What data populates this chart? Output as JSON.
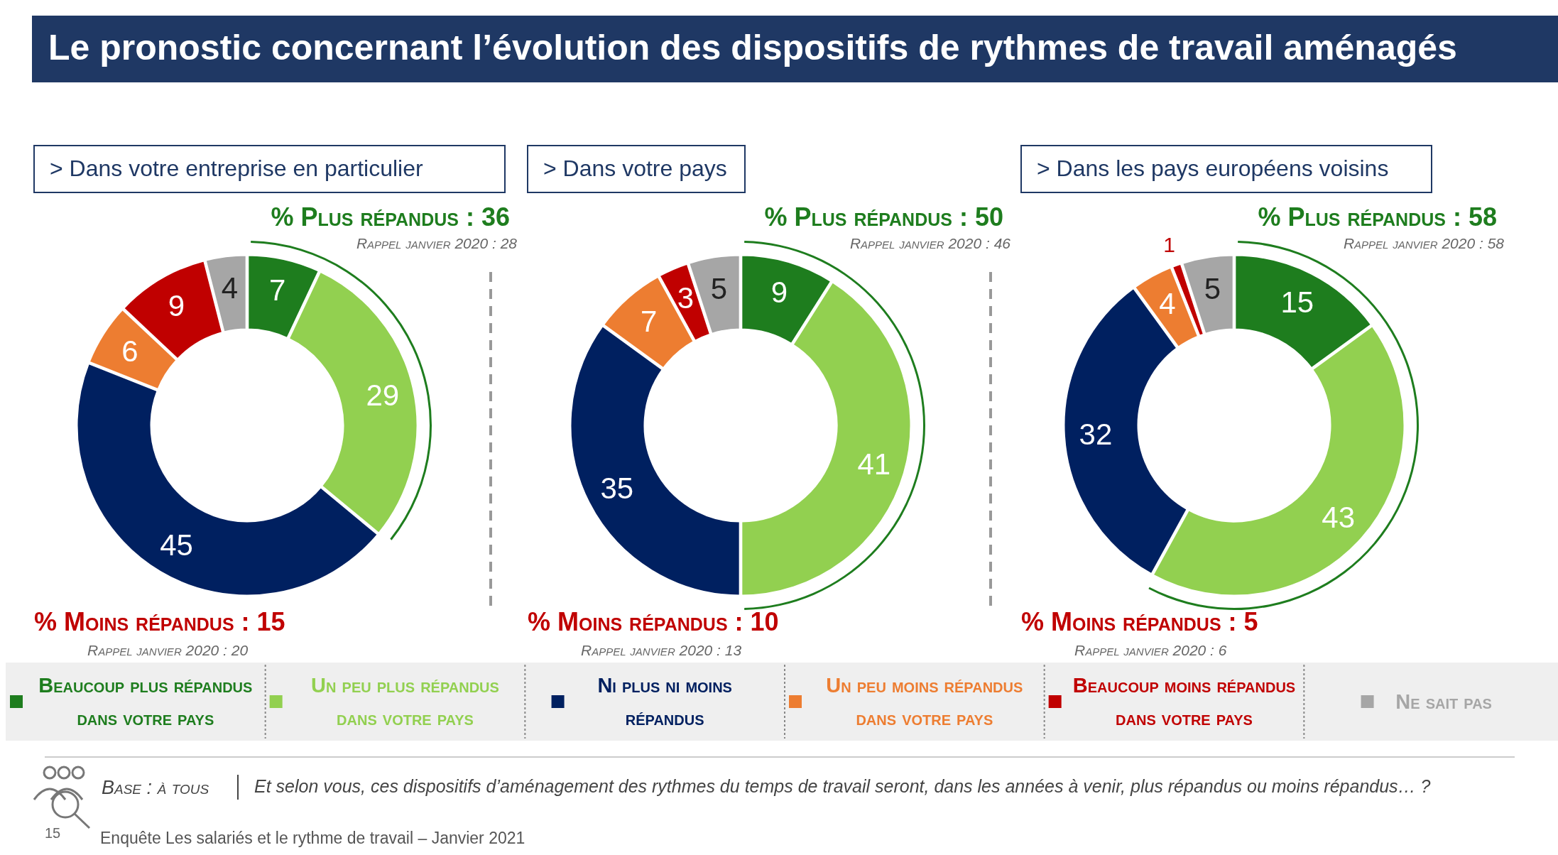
{
  "chart_data": [
    {
      "type": "donut",
      "title": ">  Dans votre entreprise en particulier",
      "categories": [
        "Beaucoup plus répandus dans votre pays",
        "Un peu plus répandus dans votre pays",
        "Ni plus ni moins répandus",
        "Un peu moins répandus dans votre pays",
        "Beaucoup moins répandus dans votre pays",
        "Ne sait pas"
      ],
      "values": [
        7,
        29,
        45,
        6,
        9,
        4
      ],
      "colors": [
        "#1e7d1e",
        "#92d050",
        "#002060",
        "#ed7d31",
        "#c00000",
        "#a6a6a6"
      ],
      "data_labels": true,
      "legend": "bottom",
      "annotations": [
        "% Plus répandus : 36",
        "Rappel janvier 2020 : 28",
        "% Moins répandus : 15",
        "Rappel janvier 2020 : 20"
      ]
    },
    {
      "type": "donut",
      "title": ">  Dans votre pays",
      "categories": [
        null,
        null,
        null,
        null,
        null,
        null
      ],
      "values": [
        9,
        41,
        35,
        7,
        3,
        5
      ],
      "colors": [
        "#1e7d1e",
        "#92d050",
        "#002060",
        "#ed7d31",
        "#c00000",
        "#a6a6a6"
      ],
      "data_labels": true,
      "annotations": [
        "% Plus répandus : 50",
        "Rappel janvier 2020 : 46",
        "% Moins répandus : 10",
        "Rappel janvier 2020 : 13"
      ]
    },
    {
      "type": "donut",
      "title": ">  Dans les pays européens voisins",
      "categories": [
        null,
        null,
        null,
        null,
        null,
        null
      ],
      "values": [
        15,
        43,
        32,
        4,
        1,
        5
      ],
      "colors": [
        "#1e7d1e",
        "#92d050",
        "#002060",
        "#ed7d31",
        "#c00000",
        "#a6a6a6"
      ],
      "data_labels": true,
      "annotations": [
        "% Plus répandus : 58",
        "Rappel janvier 2020 : 58",
        "% Moins répandus : 5",
        "Rappel janvier 2020 : 6"
      ]
    },
    {
      "type": "other",
      "title": "Le pronostic concernant l’évolution des dispositifs de rythmes de travail aménagés",
      "annotations": [
        "Base : à tous",
        "Et selon vous, ces dispositifs d’aménagement des rythmes du temps de travail seront, dans les années à venir, plus répandus ou moins répandus… ?",
        "15",
        "Enquête Les salariés et le rythme de travail – Janvier 2021"
      ]
    }
  ]
}
